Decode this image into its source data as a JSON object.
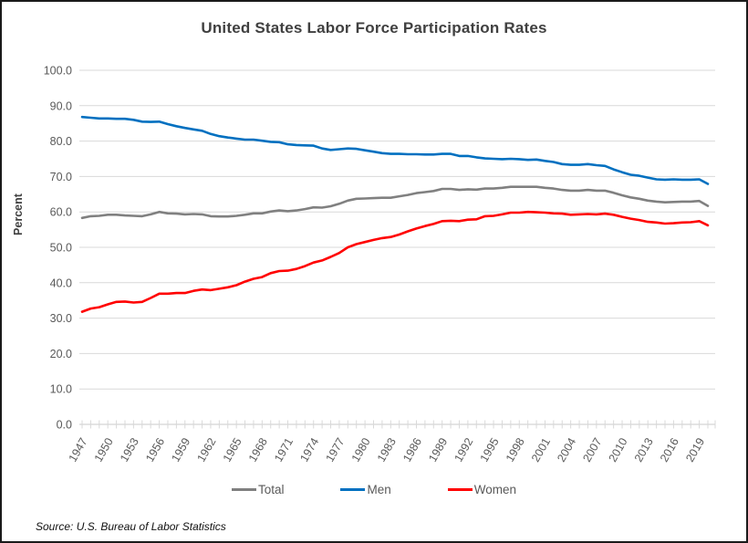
{
  "title": "United States Labor Force Participation Rates",
  "source": "Source: U.S. Bureau of Labor Statistics",
  "colors": {
    "title_text": "#404040",
    "axis_text": "#595959",
    "gridline": "#D9D9D9",
    "axis_line": "#C9C9C9",
    "frame_border": "#1a1a1a"
  },
  "chart_data": {
    "type": "line",
    "title": "United States Labor Force Participation Rates",
    "xlabel": "",
    "ylabel": "Percent",
    "ylim": [
      0,
      100
    ],
    "ytick_step": 10,
    "ytick_format": "0.0",
    "xtick_label_step": 3,
    "xtick_labels": [
      1947,
      1950,
      1953,
      1956,
      1959,
      1962,
      1965,
      1968,
      1971,
      1974,
      1977,
      1980,
      1983,
      1986,
      1989,
      1992,
      1995,
      1998,
      2001,
      2004,
      2007,
      2010,
      2013,
      2016,
      2019
    ],
    "grid": "horizontal",
    "legend_position": "bottom",
    "x": [
      1947,
      1948,
      1949,
      1950,
      1951,
      1952,
      1953,
      1954,
      1955,
      1956,
      1957,
      1958,
      1959,
      1960,
      1961,
      1962,
      1963,
      1964,
      1965,
      1966,
      1967,
      1968,
      1969,
      1970,
      1971,
      1972,
      1973,
      1974,
      1975,
      1976,
      1977,
      1978,
      1979,
      1980,
      1981,
      1982,
      1983,
      1984,
      1985,
      1986,
      1987,
      1988,
      1989,
      1990,
      1991,
      1992,
      1993,
      1994,
      1995,
      1996,
      1997,
      1998,
      1999,
      2000,
      2001,
      2002,
      2003,
      2004,
      2005,
      2006,
      2007,
      2008,
      2009,
      2010,
      2011,
      2012,
      2013,
      2014,
      2015,
      2016,
      2017,
      2018,
      2019,
      2020
    ],
    "series": [
      {
        "name": "Total",
        "color": "#808080",
        "values": [
          58.3,
          58.8,
          58.9,
          59.2,
          59.2,
          59.0,
          58.9,
          58.8,
          59.3,
          60.0,
          59.6,
          59.5,
          59.3,
          59.4,
          59.3,
          58.8,
          58.7,
          58.7,
          58.9,
          59.2,
          59.6,
          59.6,
          60.1,
          60.4,
          60.2,
          60.4,
          60.8,
          61.3,
          61.2,
          61.6,
          62.3,
          63.2,
          63.7,
          63.8,
          63.9,
          64.0,
          64.0,
          64.4,
          64.8,
          65.3,
          65.6,
          65.9,
          66.5,
          66.5,
          66.2,
          66.4,
          66.3,
          66.6,
          66.6,
          66.8,
          67.1,
          67.1,
          67.1,
          67.1,
          66.8,
          66.6,
          66.2,
          66.0,
          66.0,
          66.2,
          66.0,
          66.0,
          65.4,
          64.7,
          64.1,
          63.7,
          63.2,
          62.9,
          62.7,
          62.8,
          62.9,
          62.9,
          63.1,
          61.7
        ]
      },
      {
        "name": "Men",
        "color": "#0070C0",
        "values": [
          86.8,
          86.6,
          86.4,
          86.4,
          86.3,
          86.3,
          86.0,
          85.5,
          85.4,
          85.5,
          84.8,
          84.2,
          83.7,
          83.3,
          82.9,
          82.0,
          81.4,
          81.0,
          80.7,
          80.4,
          80.4,
          80.1,
          79.8,
          79.7,
          79.1,
          78.9,
          78.8,
          78.7,
          77.9,
          77.5,
          77.7,
          77.9,
          77.8,
          77.4,
          77.0,
          76.6,
          76.4,
          76.4,
          76.3,
          76.3,
          76.2,
          76.2,
          76.4,
          76.4,
          75.8,
          75.8,
          75.4,
          75.1,
          75.0,
          74.9,
          75.0,
          74.9,
          74.7,
          74.8,
          74.4,
          74.1,
          73.5,
          73.3,
          73.3,
          73.5,
          73.2,
          73.0,
          72.0,
          71.2,
          70.5,
          70.2,
          69.7,
          69.2,
          69.1,
          69.2,
          69.1,
          69.1,
          69.2,
          67.9
        ]
      },
      {
        "name": "Women",
        "color": "#FF0000",
        "values": [
          31.8,
          32.7,
          33.1,
          33.9,
          34.6,
          34.7,
          34.4,
          34.6,
          35.7,
          36.9,
          36.9,
          37.1,
          37.1,
          37.7,
          38.1,
          37.9,
          38.3,
          38.7,
          39.3,
          40.3,
          41.1,
          41.6,
          42.7,
          43.3,
          43.4,
          43.9,
          44.7,
          45.7,
          46.3,
          47.3,
          48.4,
          50.0,
          50.9,
          51.5,
          52.1,
          52.6,
          52.9,
          53.6,
          54.5,
          55.3,
          56.0,
          56.6,
          57.4,
          57.5,
          57.4,
          57.8,
          57.9,
          58.8,
          58.9,
          59.3,
          59.8,
          59.8,
          60.0,
          59.9,
          59.8,
          59.6,
          59.5,
          59.2,
          59.3,
          59.4,
          59.3,
          59.5,
          59.2,
          58.6,
          58.1,
          57.7,
          57.2,
          57.0,
          56.7,
          56.8,
          57.0,
          57.1,
          57.4,
          56.2
        ]
      }
    ]
  }
}
